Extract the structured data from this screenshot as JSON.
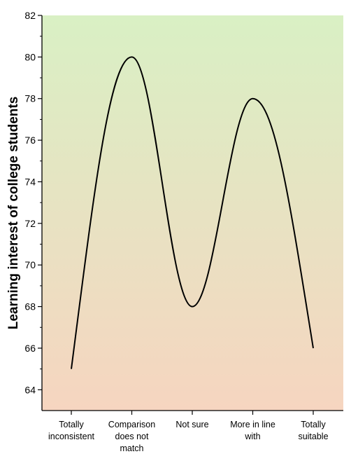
{
  "chart_data": {
    "type": "line",
    "title": "",
    "xlabel": "",
    "ylabel": "Learning interest of college students",
    "categories": [
      [
        "Totally",
        "inconsistent"
      ],
      [
        "Comparison",
        "does not",
        "match"
      ],
      [
        "Not sure"
      ],
      [
        "More in line",
        "with"
      ],
      [
        "Totally",
        "suitable"
      ]
    ],
    "series": [
      {
        "values": [
          65,
          80,
          68,
          78,
          66
        ]
      }
    ],
    "smooth": true,
    "ylim": [
      63,
      82
    ],
    "yticks": [
      64,
      66,
      68,
      70,
      72,
      74,
      76,
      78,
      80,
      82
    ],
    "grid": false,
    "background_gradient": [
      "#d9f0c4",
      "#f6d5c0"
    ],
    "line_color": "#000000"
  }
}
